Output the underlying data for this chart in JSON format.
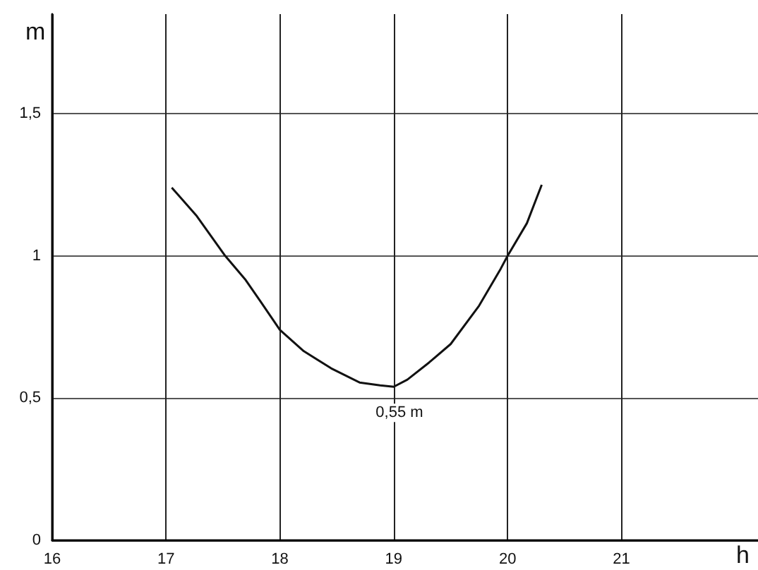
{
  "chart_data": {
    "type": "line",
    "xlabel": "h",
    "ylabel": "m",
    "x": [
      17.05,
      17.27,
      17.52,
      17.7,
      17.83,
      18.0,
      18.21,
      18.45,
      18.7,
      18.88,
      19.0,
      19.12,
      19.31,
      19.5,
      19.75,
      19.94,
      20.0,
      20.17,
      20.3
    ],
    "series": [
      {
        "color": "#111111",
        "values": [
          1.24,
          1.14,
          1.0,
          0.915,
          0.84,
          0.74,
          0.665,
          0.605,
          0.555,
          0.545,
          0.54,
          0.565,
          0.625,
          0.69,
          0.825,
          0.955,
          1.0,
          1.115,
          1.25
        ]
      }
    ],
    "xlim": [
      16,
      22.2
    ],
    "xticks": [
      16,
      17,
      18,
      19,
      20,
      21
    ],
    "ylim": [
      0,
      1.85
    ],
    "yticks": [
      {
        "value": 0,
        "label": "0"
      },
      {
        "value": 0.5,
        "label": "0,5"
      },
      {
        "value": 1,
        "label": "1"
      },
      {
        "value": 1.5,
        "label": "1,5"
      }
    ],
    "annotations": [
      {
        "text": "0,55 m",
        "x": 19.05,
        "y": 0.55
      }
    ],
    "grid": true,
    "marker": "none",
    "line_style": "solid"
  }
}
